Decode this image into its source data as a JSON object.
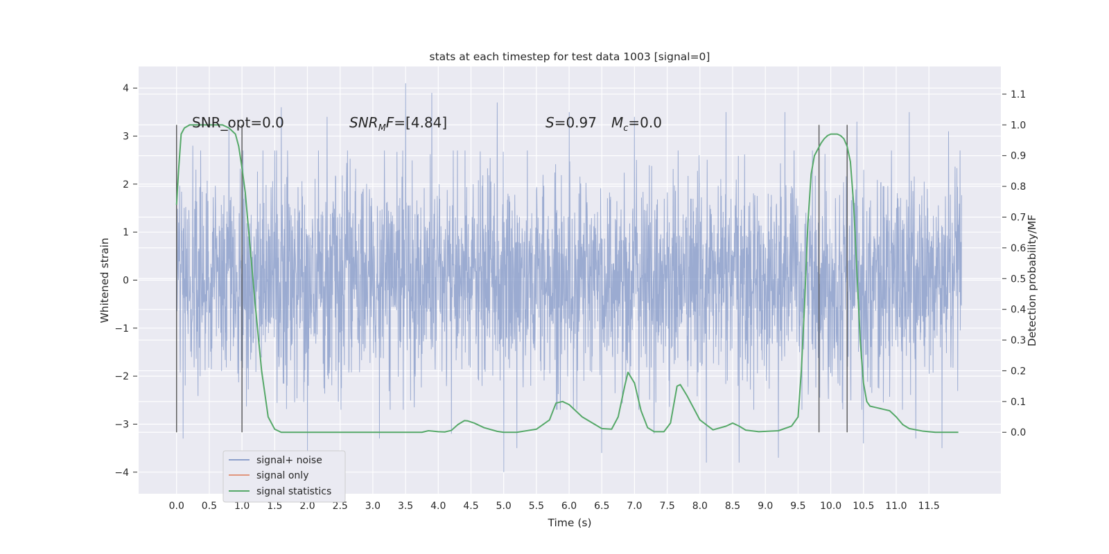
{
  "chart_data": {
    "type": "line",
    "title": "stats at each timestep for test data 1003 [signal=0]",
    "xlabel": "Time (s)",
    "ylabel_left": "Whitened strain",
    "ylabel_right": "Detection probability/MF",
    "xlim": [
      -0.58,
      12.6
    ],
    "ylim_left": [
      -4.45,
      4.45
    ],
    "ylim_right": [
      -0.2,
      1.19
    ],
    "x_ticks": [
      "0.0",
      "0.5",
      "1.0",
      "1.5",
      "2.0",
      "2.5",
      "3.0",
      "3.5",
      "4.0",
      "4.5",
      "5.0",
      "5.5",
      "6.0",
      "6.5",
      "7.0",
      "7.5",
      "8.0",
      "8.5",
      "9.0",
      "9.5",
      "10.0",
      "10.5",
      "11.0",
      "11.5"
    ],
    "y_ticks_left": [
      "4",
      "3",
      "2",
      "1",
      "0",
      "−1",
      "−2",
      "−3",
      "−4"
    ],
    "y_ticks_right": [
      "1.1",
      "1.0",
      "0.9",
      "0.8",
      "0.7",
      "0.6",
      "0.5",
      "0.4",
      "0.3",
      "0.2",
      "0.1",
      "0.0"
    ],
    "grid": true,
    "legend_position": "lower-left",
    "legend": [
      "signal+ noise",
      "signal only",
      "signal statistics"
    ],
    "annotations": {
      "snr_opt": "SNR_opt=0.0",
      "snr_mf": "=[4.84]",
      "s_value": "=0.97",
      "mc_value": "=0.0"
    },
    "colors": {
      "noise": "#8da0cb",
      "signal_only": "#e0957d",
      "statistics": "#55a868",
      "background": "#eaeaf2",
      "grid": "#ffffff",
      "marker_lines": "#555555"
    },
    "series": [
      {
        "name": "signal+ noise",
        "axis": "left",
        "x_range": [
          0.0,
          12.0
        ],
        "amplitude_bulk": 1.3,
        "peaks_high": [
          [
            0.25,
            2.8
          ],
          [
            0.8,
            3.3
          ],
          [
            1.6,
            3.6
          ],
          [
            2.3,
            3.4
          ],
          [
            3.5,
            4.1
          ],
          [
            3.9,
            3.9
          ],
          [
            4.9,
            3.7
          ],
          [
            6.0,
            3.5
          ],
          [
            7.0,
            3.4
          ],
          [
            8.4,
            3.5
          ],
          [
            9.3,
            3.5
          ],
          [
            10.4,
            3.3
          ],
          [
            11.2,
            3.5
          ],
          [
            11.8,
            3.1
          ]
        ],
        "peaks_low": [
          [
            0.1,
            -3.3
          ],
          [
            1.0,
            -2.9
          ],
          [
            2.0,
            -3.6
          ],
          [
            3.1,
            -3.3
          ],
          [
            4.2,
            -3.2
          ],
          [
            5.0,
            -4.0
          ],
          [
            5.2,
            -3.5
          ],
          [
            6.5,
            -3.6
          ],
          [
            7.3,
            -3.2
          ],
          [
            8.1,
            -3.8
          ],
          [
            8.6,
            -3.8
          ],
          [
            9.2,
            -3.7
          ],
          [
            10.5,
            -3.4
          ],
          [
            11.3,
            -3.3
          ],
          [
            11.7,
            -3.5
          ]
        ]
      },
      {
        "name": "signal only",
        "axis": "left",
        "x": [],
        "y": []
      },
      {
        "name": "signal statistics",
        "axis": "right",
        "x": [
          0.0,
          0.03,
          0.07,
          0.12,
          0.2,
          0.3,
          0.5,
          0.7,
          0.8,
          0.9,
          0.95,
          1.0,
          1.05,
          1.1,
          1.2,
          1.3,
          1.4,
          1.5,
          1.6,
          1.8,
          2.0,
          2.5,
          3.0,
          3.5,
          3.75,
          3.85,
          4.0,
          4.1,
          4.2,
          4.3,
          4.4,
          4.45,
          4.55,
          4.7,
          4.9,
          5.0,
          5.2,
          5.5,
          5.7,
          5.8,
          5.9,
          6.0,
          6.2,
          6.5,
          6.65,
          6.75,
          6.85,
          6.9,
          7.0,
          7.1,
          7.2,
          7.3,
          7.45,
          7.55,
          7.65,
          7.7,
          7.8,
          8.0,
          8.2,
          8.4,
          8.5,
          8.6,
          8.7,
          8.9,
          9.2,
          9.4,
          9.5,
          9.55,
          9.6,
          9.65,
          9.7,
          9.75,
          9.8,
          9.85,
          9.9,
          9.95,
          10.0,
          10.1,
          10.15,
          10.2,
          10.25,
          10.3,
          10.35,
          10.4,
          10.45,
          10.5,
          10.55,
          10.6,
          10.7,
          10.8,
          10.9,
          11.0,
          11.1,
          11.2,
          11.4,
          11.6,
          11.8,
          11.95
        ],
        "y": [
          0.74,
          0.85,
          0.97,
          0.99,
          1.0,
          1.0,
          1.0,
          1.0,
          0.99,
          0.97,
          0.93,
          0.86,
          0.78,
          0.66,
          0.42,
          0.2,
          0.05,
          0.01,
          0.0,
          0.0,
          0.0,
          0.0,
          0.0,
          0.0,
          0.0,
          0.005,
          0.002,
          0.001,
          0.006,
          0.025,
          0.038,
          0.037,
          0.03,
          0.015,
          0.003,
          0.0,
          0.0,
          0.01,
          0.04,
          0.095,
          0.1,
          0.09,
          0.05,
          0.012,
          0.01,
          0.05,
          0.15,
          0.195,
          0.16,
          0.07,
          0.015,
          0.002,
          0.002,
          0.03,
          0.15,
          0.155,
          0.12,
          0.04,
          0.008,
          0.02,
          0.03,
          0.02,
          0.007,
          0.002,
          0.005,
          0.02,
          0.05,
          0.2,
          0.42,
          0.68,
          0.84,
          0.9,
          0.92,
          0.94,
          0.955,
          0.965,
          0.97,
          0.97,
          0.965,
          0.955,
          0.93,
          0.88,
          0.74,
          0.52,
          0.3,
          0.16,
          0.1,
          0.085,
          0.08,
          0.075,
          0.07,
          0.05,
          0.025,
          0.012,
          0.004,
          0.0,
          0.0,
          0.0
        ]
      }
    ],
    "vertical_markers": [
      0.0,
      1.0,
      9.82,
      10.25
    ]
  }
}
